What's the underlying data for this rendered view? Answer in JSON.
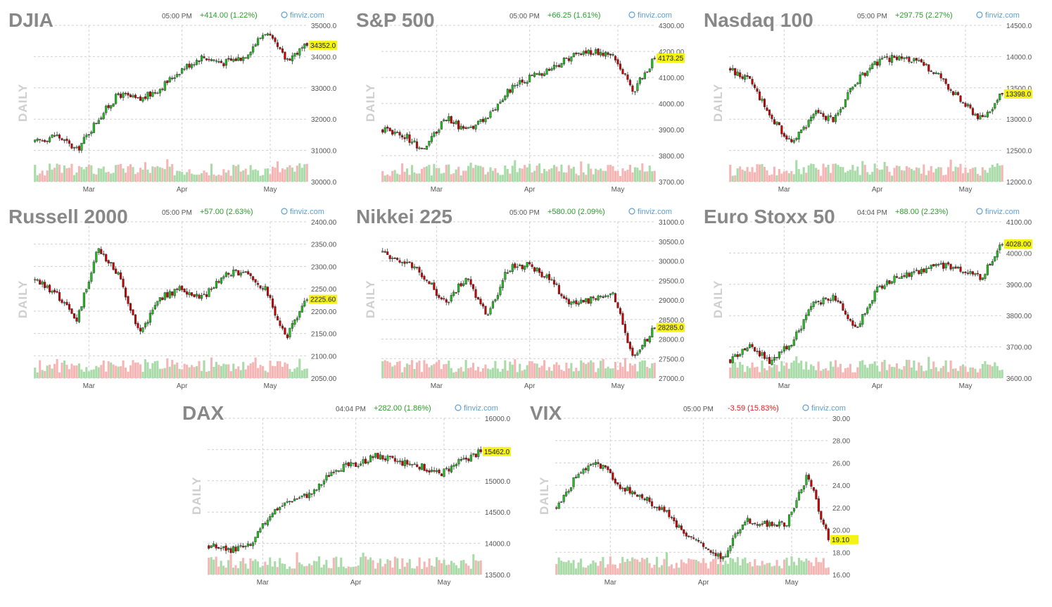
{
  "chart_data": [
    {
      "type": "candlestick",
      "title": "DJIA",
      "time": "05:00 PM",
      "change": "+414.00 (1.22%)",
      "direction": "up",
      "brand": "finviz.com",
      "timeframe": "DAILY",
      "yticks": [
        "35000.0",
        "34000.0",
        "33000.0",
        "32000.0",
        "31000.0",
        "30000.0"
      ],
      "ylim": [
        30000,
        35000
      ],
      "months": [
        "Mar",
        "Apr",
        "May"
      ],
      "last": "34352.0",
      "last_value": 34352,
      "anchors": [
        31250,
        31500,
        31000,
        32000,
        32800,
        32600,
        33000,
        33600,
        34000,
        33800,
        34000,
        34800,
        33900,
        34352
      ]
    },
    {
      "type": "candlestick",
      "title": "S&P 500",
      "time": "05:00 PM",
      "change": "+66.25 (1.61%)",
      "direction": "up",
      "brand": "finviz.com",
      "timeframe": "DAILY",
      "yticks": [
        "4300.00",
        "4200.00",
        "4100.00",
        "4000.00",
        "3900.00",
        "3800.00",
        "3700.00"
      ],
      "ylim": [
        3700,
        4300
      ],
      "months": [
        "Mar",
        "Apr",
        "May"
      ],
      "last": "4173.25",
      "last_value": 4173.25,
      "anchors": [
        3900,
        3880,
        3820,
        3950,
        3890,
        3950,
        4050,
        4100,
        4130,
        4180,
        4200,
        4180,
        4050,
        4173
      ]
    },
    {
      "type": "candlestick",
      "title": "Nasdaq 100",
      "time": "05:00 PM",
      "change": "+297.75 (2.27%)",
      "direction": "up",
      "brand": "finviz.com",
      "timeframe": "DAILY",
      "yticks": [
        "14500.0",
        "14000.0",
        "13500.0",
        "13000.0",
        "12500.0",
        "12000.0"
      ],
      "ylim": [
        12000,
        14500
      ],
      "months": [
        "Mar",
        "Apr",
        "May"
      ],
      "last": "13398.0",
      "last_value": 13398,
      "anchors": [
        13800,
        13600,
        13000,
        12600,
        13100,
        13000,
        13600,
        13900,
        14000,
        13900,
        13700,
        13300,
        13000,
        13398
      ]
    },
    {
      "type": "candlestick",
      "title": "Russell 2000",
      "time": "05:00 PM",
      "change": "+57.00 (2.63%)",
      "direction": "up",
      "brand": "finviz.com",
      "timeframe": "DAILY",
      "yticks": [
        "2400.00",
        "2350.00",
        "2300.00",
        "2250.00",
        "2200.00",
        "2150.00",
        "2100.00",
        "2050.00"
      ],
      "ylim": [
        2050,
        2400
      ],
      "months": [
        "Mar",
        "Apr",
        "May"
      ],
      "last": "2225.60",
      "last_value": 2225.6,
      "anchors": [
        2270,
        2240,
        2180,
        2340,
        2280,
        2150,
        2230,
        2250,
        2230,
        2280,
        2290,
        2250,
        2140,
        2225
      ]
    },
    {
      "type": "candlestick",
      "title": "Nikkei 225",
      "time": "05:00 PM",
      "change": "+580.00 (2.09%)",
      "direction": "up",
      "brand": "finviz.com",
      "timeframe": "DAILY",
      "yticks": [
        "31000.0",
        "30500.0",
        "30000.0",
        "29500.0",
        "29000.0",
        "28500.0",
        "28000.0",
        "27500.0",
        "27000.0"
      ],
      "ylim": [
        27000,
        31000
      ],
      "months": [
        "Mar",
        "Apr",
        "May"
      ],
      "last": "28285.0",
      "last_value": 28285,
      "anchors": [
        30200,
        30000,
        29600,
        28900,
        29600,
        28600,
        29800,
        29900,
        29500,
        28900,
        29000,
        29200,
        27500,
        28285
      ]
    },
    {
      "type": "candlestick",
      "title": "Euro Stoxx 50",
      "time": "04:04 PM",
      "change": "+88.00 (2.23%)",
      "direction": "up",
      "brand": "finviz.com",
      "timeframe": "DAILY",
      "yticks": [
        "4100.00",
        "4000.00",
        "3900.00",
        "3800.00",
        "3700.00",
        "3600.00"
      ],
      "ylim": [
        3600,
        4100
      ],
      "months": [
        "Mar",
        "Apr",
        "May"
      ],
      "last": "4028.00",
      "last_value": 4028,
      "anchors": [
        3660,
        3700,
        3650,
        3720,
        3840,
        3860,
        3760,
        3880,
        3930,
        3940,
        3960,
        3950,
        3920,
        4028
      ]
    },
    {
      "type": "candlestick",
      "title": "DAX",
      "time": "04:04 PM",
      "change": "+282.00 (1.86%)",
      "direction": "up",
      "brand": "finviz.com",
      "timeframe": "DAILY",
      "yticks": [
        "16000.0",
        "15500.0",
        "15000.0",
        "14500.0",
        "14000.0",
        "13500.0"
      ],
      "ylim": [
        13500,
        16000
      ],
      "months": [
        "Mar",
        "Apr",
        "May"
      ],
      "last": "15462.0",
      "last_value": 15462,
      "anchors": [
        13950,
        13900,
        13950,
        14500,
        14700,
        14800,
        15200,
        15250,
        15400,
        15300,
        15250,
        15100,
        15300,
        15462
      ]
    },
    {
      "type": "candlestick",
      "title": "VIX",
      "time": "05:00 PM",
      "change": "-3.59 (15.83%)",
      "direction": "down",
      "brand": "finviz.com",
      "timeframe": "DAILY",
      "yticks": [
        "30.00",
        "28.00",
        "26.00",
        "24.00",
        "22.00",
        "20.00",
        "18.00",
        "16.00"
      ],
      "ylim": [
        16,
        30
      ],
      "months": [
        "Mar",
        "Apr",
        "May"
      ],
      "last": "19.10",
      "last_value": 19.1,
      "anchors": [
        22,
        25,
        26,
        24,
        23,
        22,
        20,
        18.5,
        17.5,
        21,
        20.5,
        20.5,
        25,
        19.1
      ]
    }
  ]
}
